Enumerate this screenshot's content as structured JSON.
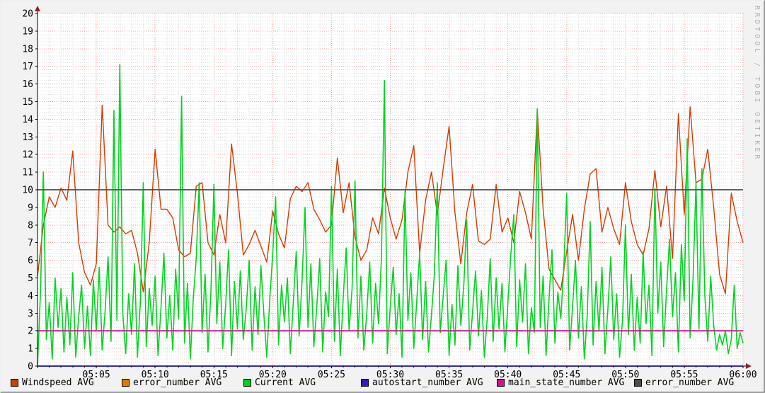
{
  "watermark": "RRDTOOL / TOBI OETIKER",
  "colors": {
    "background": "#f2f2f2",
    "canvas": "#ffffff",
    "major_grid": "#f19f9f",
    "minor_grid": "#dedede",
    "axis": "#000000",
    "arrow": "#8b2424",
    "text": "#000000",
    "watermark_text": "#b0b0b0"
  },
  "legend": [
    {
      "label": "Windspeed AVG",
      "color": "#d73b00"
    },
    {
      "label": "error_number AVG",
      "color": "#dd7c00"
    },
    {
      "label": "Current AVG",
      "color": "#00d41f"
    },
    {
      "label": "autostart_number AVG",
      "color": "#2f19cf"
    },
    {
      "label": "main_state_number AVG",
      "color": "#d90f8f"
    },
    {
      "label": "error_number AVG",
      "color": "#4d4d4d"
    }
  ],
  "chart_data": {
    "type": "line",
    "title": "",
    "xlabel": "",
    "ylabel": "",
    "grid": true,
    "legend_position": "bottom",
    "x_axis": {
      "start_min": 0,
      "end_min": 60,
      "minor_tick_min": 1,
      "major_tick_min": 5,
      "labels": [
        [
          5,
          "05:05"
        ],
        [
          10,
          "05:10"
        ],
        [
          15,
          "05:15"
        ],
        [
          20,
          "05:20"
        ],
        [
          25,
          "05:25"
        ],
        [
          30,
          "05:30"
        ],
        [
          35,
          "05:35"
        ],
        [
          40,
          "05:40"
        ],
        [
          45,
          "05:45"
        ],
        [
          50,
          "05:50"
        ],
        [
          55,
          "05:55"
        ],
        [
          60,
          "06:00"
        ]
      ]
    },
    "y_axis": {
      "min": 0,
      "max": 20,
      "major_step": 1,
      "minor_step": 0.2,
      "labels": [
        0,
        1,
        2,
        3,
        4,
        5,
        6,
        7,
        8,
        9,
        10,
        11,
        12,
        13,
        14,
        15,
        16,
        17,
        18,
        19,
        20
      ]
    },
    "series": [
      {
        "name": "Windspeed AVG",
        "color": "#d73b00",
        "width": 1.4,
        "x_step_min": 0.5,
        "values": [
          5.1,
          8.0,
          9.6,
          9.0,
          10.1,
          9.4,
          12.2,
          7.0,
          5.3,
          4.6,
          5.8,
          14.8,
          8.0,
          7.6,
          7.9,
          7.5,
          7.7,
          6.4,
          4.2,
          7.0,
          12.3,
          8.9,
          8.9,
          8.4,
          6.6,
          6.2,
          6.4,
          10.2,
          10.4,
          7.0,
          6.3,
          8.6,
          7.0,
          12.6,
          9.8,
          6.3,
          6.9,
          7.7,
          6.8,
          5.9,
          8.8,
          7.5,
          6.7,
          9.5,
          10.2,
          9.9,
          10.4,
          8.9,
          8.3,
          7.6,
          8.0,
          11.8,
          8.7,
          10.4,
          7.3,
          6.0,
          6.6,
          8.4,
          7.5,
          10.1,
          8.4,
          7.2,
          8.3,
          11.0,
          12.5,
          6.4,
          9.4,
          11.0,
          8.6,
          11.2,
          13.6,
          8.7,
          5.8,
          8.7,
          10.3,
          7.1,
          6.9,
          7.2,
          10.3,
          7.6,
          8.4,
          7.0,
          9.9,
          8.7,
          7.2,
          14.5,
          8.9,
          5.5,
          4.9,
          4.3,
          6.5,
          8.6,
          6.0,
          8.9,
          10.9,
          11.2,
          7.6,
          9.0,
          7.8,
          6.9,
          10.4,
          8.2,
          6.9,
          6.3,
          7.8,
          11.1,
          7.9,
          10.2,
          6.1,
          14.3,
          8.6,
          14.7,
          10.4,
          10.6,
          12.3,
          9.0,
          5.2,
          4.1,
          9.8,
          8.2,
          7.0
        ]
      },
      {
        "name": "Current AVG",
        "color": "#00d41f",
        "width": 1.6,
        "x_step_min": 0.25,
        "values": [
          0.0,
          4.2,
          11.0,
          1.5,
          3.6,
          0.4,
          5.0,
          2.2,
          4.4,
          0.8,
          3.9,
          1.2,
          5.3,
          0.5,
          2.8,
          4.6,
          1.0,
          3.4,
          0.6,
          4.9,
          2.0,
          5.6,
          0.9,
          3.1,
          6.2,
          1.4,
          14.5,
          2.6,
          17.1,
          3.0,
          0.7,
          4.1,
          1.8,
          5.8,
          0.5,
          3.7,
          10.4,
          1.1,
          4.4,
          2.3,
          5.1,
          0.6,
          3.3,
          6.4,
          1.6,
          4.0,
          0.9,
          5.5,
          2.7,
          15.3,
          1.3,
          4.7,
          0.4,
          3.9,
          6.1,
          10.4,
          1.9,
          5.2,
          0.8,
          4.3,
          10.3,
          2.4,
          5.9,
          1.0,
          3.5,
          6.6,
          0.6,
          4.8,
          2.1,
          5.4,
          1.5,
          3.2,
          6.0,
          0.9,
          4.5,
          1.8,
          5.7,
          2.9,
          0.5,
          3.8,
          6.3,
          9.6,
          1.2,
          4.6,
          2.5,
          5.0,
          0.7,
          3.6,
          6.5,
          1.7,
          4.9,
          9.0,
          2.2,
          5.8,
          1.1,
          3.3,
          6.1,
          0.8,
          4.2,
          2.8,
          10.2,
          1.4,
          5.5,
          0.6,
          3.9,
          6.7,
          2.0,
          4.4,
          10.5,
          1.6,
          5.1,
          0.9,
          3.0,
          5.9,
          1.3,
          4.7,
          2.4,
          6.2,
          16.2,
          0.7,
          3.4,
          5.6,
          1.8,
          4.1,
          0.5,
          9.9,
          2.6,
          5.3,
          1.0,
          3.7,
          6.4,
          1.5,
          4.8,
          0.8,
          2.9,
          5.2,
          10.4,
          1.9,
          4.0,
          6.0,
          0.6,
          3.5,
          1.2,
          5.7,
          2.3,
          4.6,
          8.3,
          0.9,
          3.1,
          5.4,
          1.7,
          4.3,
          0.5,
          2.8,
          6.1,
          1.4,
          5.0,
          2.1,
          4.7,
          0.8,
          3.6,
          6.3,
          8.6,
          1.1,
          4.9,
          2.5,
          5.8,
          0.7,
          3.3,
          1.9,
          14.6,
          2.2,
          5.1,
          0.6,
          3.8,
          6.6,
          1.3,
          4.2,
          2.7,
          5.5,
          9.8,
          0.9,
          3.4,
          6.0,
          1.6,
          4.5,
          0.4,
          2.9,
          8.2,
          1.2,
          4.8,
          2.0,
          5.6,
          0.7,
          3.2,
          6.2,
          1.5,
          4.1,
          0.5,
          2.6,
          8.0,
          1.8,
          5.2,
          0.9,
          3.9,
          1.3,
          6.5,
          2.4,
          4.6,
          0.6,
          10.1,
          3.0,
          5.9,
          1.1,
          4.4,
          7.2,
          2.8,
          5.3,
          0.8,
          6.9,
          3.7,
          12.9,
          1.6,
          5.0,
          10.4,
          2.1,
          11.2,
          4.0,
          1.4,
          5.1,
          2.3,
          0.9,
          1.8,
          1.2,
          2.0,
          0.7,
          1.5,
          4.6,
          1.0,
          1.9,
          1.3
        ]
      },
      {
        "name": "error_number AVG",
        "color": "#4d4d4d",
        "width": 1.8,
        "constant": 10
      },
      {
        "name": "main_state_number AVG",
        "color": "#d90f8f",
        "width": 1.8,
        "constant": 2
      },
      {
        "name": "autostart_number AVG",
        "color": "#2b24ae",
        "width": 1.8,
        "constant": 0
      }
    ]
  }
}
